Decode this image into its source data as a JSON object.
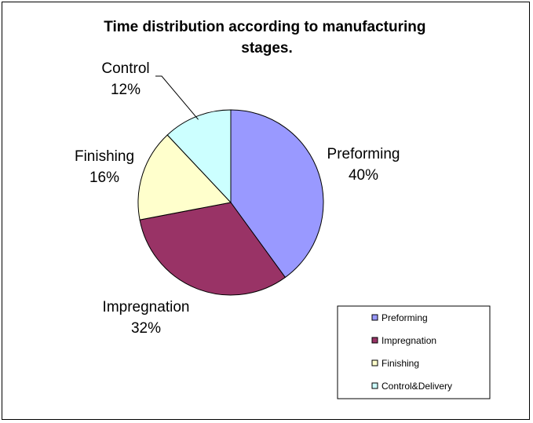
{
  "chart_data": {
    "type": "pie",
    "title": "Time distribution according to manufacturing stages.",
    "slices": [
      {
        "name": "Preforming",
        "label": "Preforming",
        "value": 40,
        "value_label": "40%",
        "color": "#9999ff"
      },
      {
        "name": "Impregnation",
        "label": "Impregnation",
        "value": 32,
        "value_label": "32%",
        "color": "#993366"
      },
      {
        "name": "Finishing",
        "label": "Finishing",
        "value": 16,
        "value_label": "16%",
        "color": "#ffffcc"
      },
      {
        "name": "Control&Delivery",
        "label": "Control",
        "value": 12,
        "value_label": "12%",
        "color": "#ccffff"
      }
    ],
    "legend": {
      "position": "bottom-right",
      "entries": [
        "Preforming",
        "Impregnation",
        "Finishing",
        "Control&Delivery"
      ]
    }
  }
}
